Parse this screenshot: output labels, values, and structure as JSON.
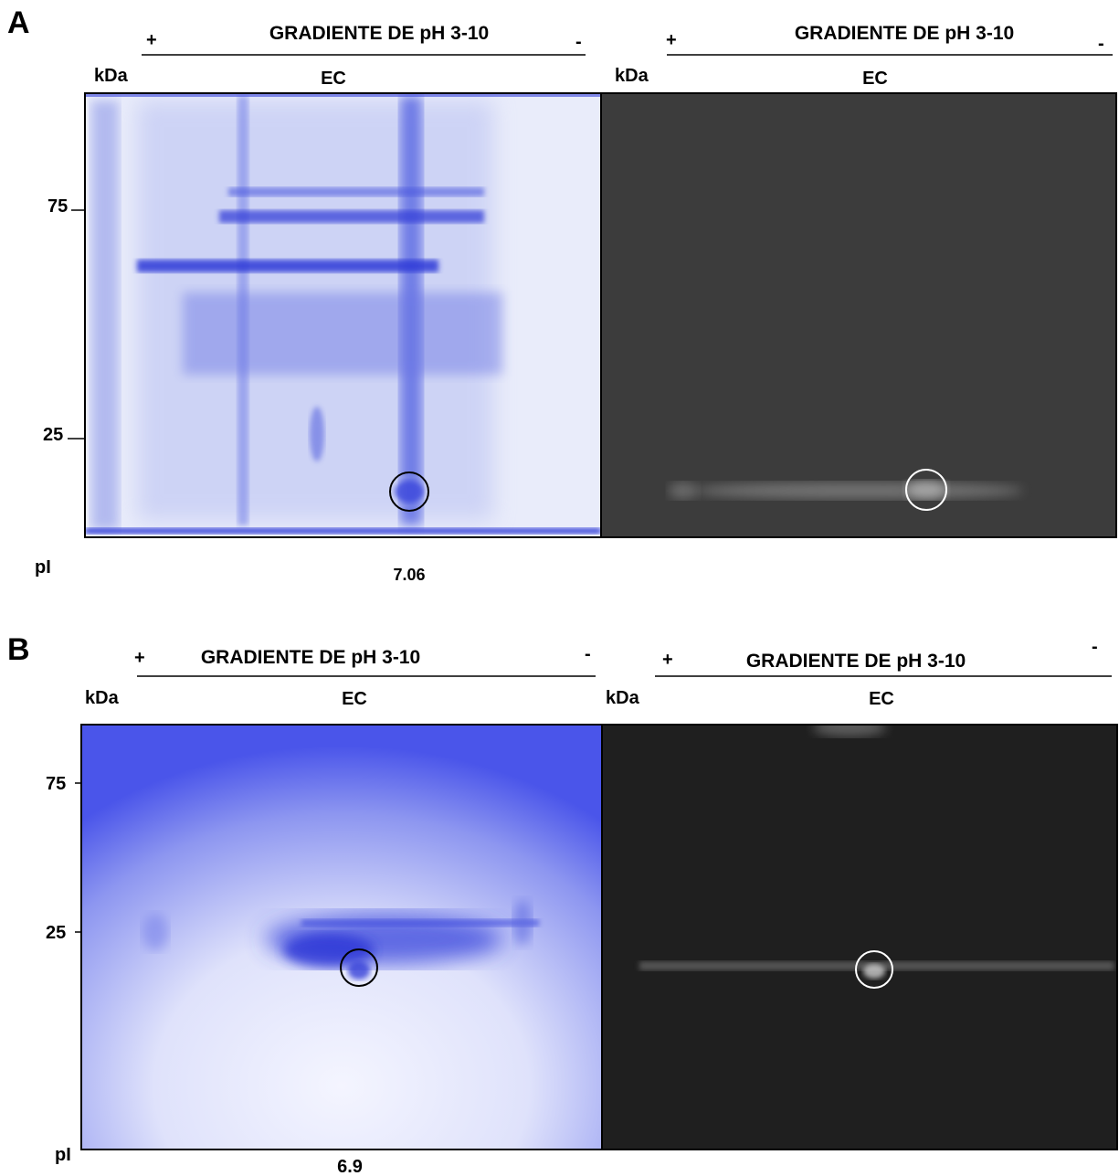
{
  "panel_a": {
    "label": "A",
    "left": {
      "plus": "+",
      "gradient": "GRADIENTE DE pH 3-10",
      "minus": "-",
      "kda": "kDa",
      "sample": "EC"
    },
    "right": {
      "plus": "+",
      "gradient": "GRADIENTE DE pH 3-10",
      "minus": "-",
      "kda": "kDa",
      "sample": "EC"
    },
    "markers": [
      75,
      25
    ],
    "pi_label": "pI",
    "pi_value": 7.06
  },
  "panel_b": {
    "label": "B",
    "left": {
      "plus": "+",
      "gradient": "GRADIENTE DE pH 3-10",
      "minus": "-",
      "kda": "kDa",
      "sample": "EC"
    },
    "right": {
      "plus": "+",
      "gradient": "GRADIENTE DE pH 3-10",
      "minus": "-",
      "kda": "kDa",
      "sample": "EC"
    },
    "markers": [
      75,
      25
    ],
    "pi_label": "pI",
    "pi_value": 6.9
  }
}
